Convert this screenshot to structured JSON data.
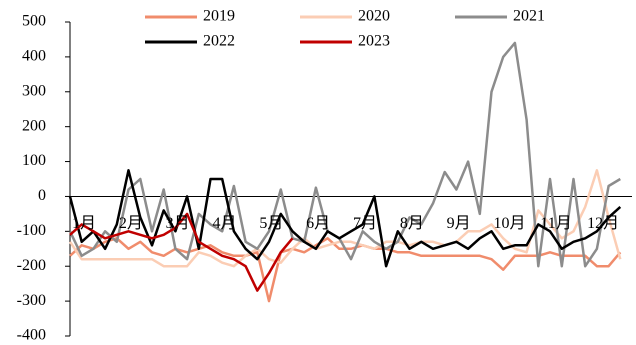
{
  "chart_data": {
    "type": "line",
    "categories": [
      "1月",
      null,
      null,
      null,
      "2月",
      null,
      null,
      null,
      "3月",
      null,
      null,
      null,
      "4月",
      null,
      null,
      null,
      "5月",
      null,
      null,
      null,
      "6月",
      null,
      null,
      null,
      "7月",
      null,
      null,
      null,
      "8月",
      null,
      null,
      null,
      "9月",
      null,
      null,
      null,
      "10月",
      null,
      null,
      null,
      "11月",
      null,
      null,
      null,
      "12月",
      null,
      null,
      null
    ],
    "series": [
      {
        "name": "2019",
        "color": "#f08c6c",
        "values": [
          -170,
          -140,
          -150,
          -130,
          -120,
          -150,
          -130,
          -160,
          -170,
          -150,
          -160,
          -150,
          -140,
          -160,
          -170,
          -170,
          -160,
          -300,
          -160,
          -150,
          -160,
          -140,
          -120,
          -150,
          -150,
          -140,
          -150,
          -150,
          -160,
          -160,
          -170,
          -170,
          -170,
          -170,
          -170,
          -170,
          -180,
          -210,
          -170,
          -170,
          -170,
          -160,
          -170,
          -170,
          -170,
          -200,
          -200,
          -160
        ]
      },
      {
        "name": "2020",
        "color": "#fbcdb4",
        "values": [
          -130,
          -180,
          -180,
          -180,
          -180,
          -180,
          -180,
          -180,
          -200,
          -200,
          -200,
          -160,
          -170,
          -190,
          -200,
          -170,
          -150,
          -180,
          -190,
          -150,
          -120,
          -150,
          -140,
          -130,
          -130,
          -140,
          -150,
          -130,
          -130,
          -140,
          -130,
          -130,
          -140,
          -130,
          -100,
          -100,
          -80,
          -120,
          -150,
          -160,
          -40,
          -80,
          -120,
          -100,
          -30,
          75,
          -60,
          -180
        ]
      },
      {
        "name": "2021",
        "color": "#8c8c8c",
        "values": [
          -100,
          -170,
          -150,
          -100,
          -130,
          20,
          50,
          -100,
          20,
          -150,
          -180,
          -50,
          -80,
          -100,
          30,
          -130,
          -150,
          -100,
          20,
          -120,
          -130,
          25,
          -100,
          -120,
          -180,
          -100,
          -130,
          -150,
          -130,
          -60,
          -80,
          -20,
          70,
          20,
          100,
          -50,
          300,
          400,
          440,
          220,
          -200,
          50,
          -200,
          50,
          -200,
          -150,
          30,
          50
        ]
      },
      {
        "name": "2022",
        "color": "#000000",
        "values": [
          0,
          -130,
          -100,
          -150,
          -80,
          75,
          -60,
          -140,
          -40,
          -100,
          0,
          -150,
          50,
          50,
          -100,
          -150,
          -180,
          -130,
          -50,
          -100,
          -130,
          -150,
          -100,
          -120,
          -100,
          -80,
          0,
          -200,
          -100,
          -150,
          -130,
          -150,
          -140,
          -130,
          -150,
          -120,
          -100,
          -150,
          -140,
          -140,
          -80,
          -100,
          -150,
          -130,
          -120,
          -100,
          -60,
          -30
        ]
      },
      {
        "name": "2023",
        "color": "#c00000",
        "values": [
          -110,
          -80,
          -100,
          -120,
          -110,
          -100,
          -110,
          -120,
          -110,
          -90,
          -50,
          -130,
          -150,
          -170,
          -180,
          -200,
          -270,
          -220,
          -160,
          -120,
          null,
          null,
          null,
          null,
          null,
          null,
          null,
          null,
          null,
          null,
          null,
          null,
          null,
          null,
          null,
          null,
          null,
          null,
          null,
          null,
          null,
          null,
          null,
          null,
          null,
          null,
          null,
          null
        ]
      }
    ],
    "ylim": [
      -400,
      500
    ],
    "yticks": [
      -400,
      -300,
      -200,
      -100,
      0,
      100,
      200,
      300,
      400,
      500
    ],
    "legend": "top"
  }
}
